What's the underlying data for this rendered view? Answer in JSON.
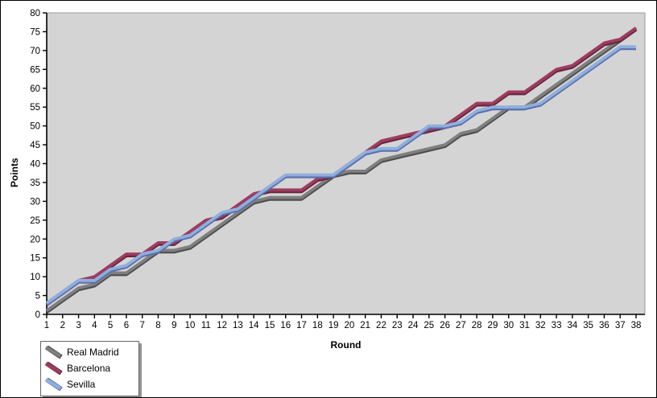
{
  "chart_data": {
    "type": "line",
    "title": "",
    "xlabel": "Round",
    "ylabel": "Points",
    "xlim": [
      1,
      38
    ],
    "ylim": [
      0,
      80
    ],
    "ytick_step": 5,
    "xtick_step": 1,
    "grid": false,
    "legend_position": "bottom-left",
    "plot_bg_color": "#d4d4d4",
    "axis_color": "#000000",
    "series": [
      {
        "name": "Real Madrid",
        "color": "#7f7f7f",
        "shadow_color": "#4c4c4c",
        "values": [
          1,
          4,
          7,
          8,
          11,
          11,
          14,
          17,
          17,
          18,
          21,
          24,
          27,
          30,
          31,
          31,
          31,
          34,
          37,
          38,
          38,
          41,
          42,
          43,
          44,
          45,
          48,
          49,
          52,
          55,
          55,
          58,
          61,
          64,
          67,
          70,
          73,
          76
        ]
      },
      {
        "name": "Barcelona",
        "color": "#9d3c5f",
        "shadow_color": "#66263f",
        "values": [
          3,
          6,
          9,
          10,
          13,
          16,
          16,
          19,
          19,
          22,
          25,
          26,
          29,
          32,
          33,
          33,
          33,
          36,
          37,
          40,
          43,
          46,
          47,
          48,
          49,
          50,
          53,
          56,
          56,
          59,
          59,
          62,
          65,
          66,
          69,
          72,
          73,
          76
        ]
      },
      {
        "name": "Sevilla",
        "color": "#8fafdc",
        "shadow_color": "#5b6fae",
        "values": [
          3,
          6,
          9,
          9,
          12,
          13,
          16,
          17,
          20,
          21,
          24,
          27,
          28,
          31,
          34,
          37,
          37,
          37,
          37,
          40,
          43,
          44,
          44,
          47,
          50,
          50,
          51,
          54,
          55,
          55,
          55,
          56,
          59,
          62,
          65,
          68,
          71,
          71
        ]
      }
    ]
  }
}
